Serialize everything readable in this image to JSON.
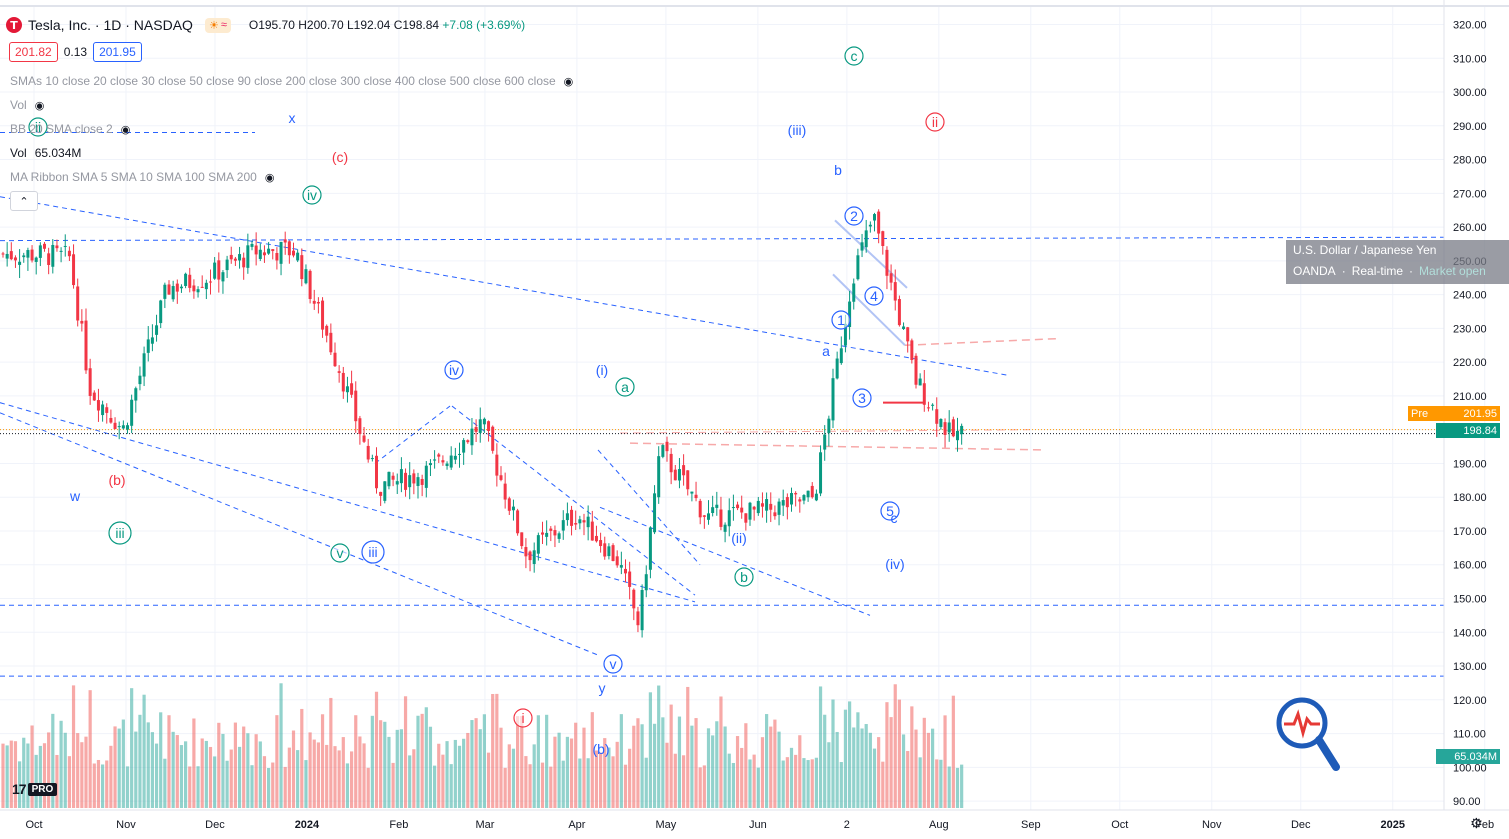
{
  "header": {
    "logo_letter": "T",
    "symbol": "Tesla, Inc. · 1D · NASDAQ",
    "badge_sun": "☀",
    "badge_wave": "≈",
    "open": "O195.70",
    "high": "H200.70",
    "low": "L192.04",
    "close": "C198.84",
    "change": "+7.08 (+3.69%)",
    "bid": "201.82",
    "spread": "0.13",
    "ask": "201.95"
  },
  "indicators": {
    "smas": "SMAs 10 close 20 close 30 close 50 close 90 close 200 close 300 close 400 close 500 close 600 close",
    "vol_hidden": "Vol",
    "bb": "BB 20 SMA close 2",
    "vol_label": "Vol",
    "vol_value": "65.034M",
    "ribbon": "MA Ribbon SMA 5 SMA 10 SMA 100 SMA 200",
    "collapse": "⌃",
    "eye_glyph": "◉"
  },
  "fx_overlay": {
    "title": "U.S. Dollar / Japanese Yen",
    "broker": "OANDA",
    "sep": "·",
    "status": "Real-time",
    "market": "Market open"
  },
  "price_labels": {
    "pre_tag": "Pre",
    "pre_price": "201.95",
    "last_price": "198.84",
    "volume": "65.034M"
  },
  "footer": {
    "brand": "17",
    "pro": "PRO",
    "gear": "⚙"
  },
  "colors": {
    "up": "#089981",
    "down": "#f23645",
    "wave_blue": "#2962ff",
    "wave_green": "#089981",
    "wave_red": "#f23645",
    "trend": "#2962ff"
  },
  "chart_data": {
    "type": "candlestick",
    "title": "Tesla, Inc. · 1D · NASDAQ",
    "y_axis": {
      "ticks": [
        320,
        310,
        300,
        290,
        280,
        270,
        260,
        250,
        240,
        230,
        220,
        210,
        200,
        190,
        180,
        170,
        160,
        150,
        140,
        130,
        120,
        110,
        100,
        90
      ],
      "labels": [
        "320.00",
        "310.00",
        "300.00",
        "290.00",
        "280.00",
        "270.00",
        "260.00",
        "250.00",
        "240.00",
        "230.00",
        "220.00",
        "210.00",
        "200.00",
        "190.00",
        "180.00",
        "170.00",
        "160.00",
        "150.00",
        "140.00",
        "130.00",
        "120.00",
        "110.00",
        "100.00",
        "90.00"
      ],
      "range": [
        86,
        323
      ]
    },
    "x_axis": {
      "labels": [
        "Oct",
        "Nov",
        "Dec",
        "2024",
        "Feb",
        "Mar",
        "Apr",
        "May",
        "Jun",
        "2",
        "Aug",
        "Sep",
        "Oct",
        "Nov",
        "Dec",
        "2025",
        "Feb"
      ],
      "dates": [
        "2023-10-01",
        "2023-11-01",
        "2023-12-01",
        "2024-01-01",
        "2024-02-01",
        "2024-03-01",
        "2024-04-01",
        "2024-05-01",
        "2024-06-01",
        "2024-07-01",
        "2024-08-01",
        "2024-09-01",
        "2024-10-01",
        "2024-11-01",
        "2024-12-01",
        "2025-01-01",
        "2025-02-01"
      ]
    },
    "series": [
      {
        "date": "2023-10-02",
        "close": 252
      },
      {
        "date": "2023-10-13",
        "close": 251
      },
      {
        "date": "2023-10-20",
        "close": 212
      },
      {
        "date": "2023-10-31",
        "close": 200
      },
      {
        "date": "2023-11-15",
        "close": 242
      },
      {
        "date": "2023-11-28",
        "close": 245
      },
      {
        "date": "2023-12-15",
        "close": 253
      },
      {
        "date": "2023-12-28",
        "close": 253
      },
      {
        "date": "2024-01-12",
        "close": 218
      },
      {
        "date": "2024-01-25",
        "close": 183
      },
      {
        "date": "2024-02-12",
        "close": 188
      },
      {
        "date": "2024-02-29",
        "close": 202
      },
      {
        "date": "2024-03-15",
        "close": 163
      },
      {
        "date": "2024-04-01",
        "close": 175
      },
      {
        "date": "2024-04-15",
        "close": 161
      },
      {
        "date": "2024-04-22",
        "close": 142
      },
      {
        "date": "2024-04-29",
        "close": 194
      },
      {
        "date": "2024-05-15",
        "close": 174
      },
      {
        "date": "2024-06-03",
        "close": 176
      },
      {
        "date": "2024-06-20",
        "close": 180
      },
      {
        "date": "2024-07-03",
        "close": 246
      },
      {
        "date": "2024-07-10",
        "close": 263
      },
      {
        "date": "2024-07-24",
        "close": 215
      },
      {
        "date": "2024-08-05",
        "close": 198
      },
      {
        "date": "2024-08-09",
        "close": 198.84
      }
    ],
    "volume_last": "65.034M",
    "annotations": [
      "(c)",
      "c",
      "(iii)",
      "b",
      "ii",
      "x",
      "iv",
      "(b)",
      "w",
      "iii",
      "(iv)",
      "(i)",
      "a",
      "iv",
      "(ii)",
      "b",
      "v",
      "iii",
      "y",
      "(b)",
      "i",
      "(iv)",
      "c",
      "2",
      "1",
      "4",
      "3",
      "5",
      "a"
    ],
    "grid": true
  }
}
